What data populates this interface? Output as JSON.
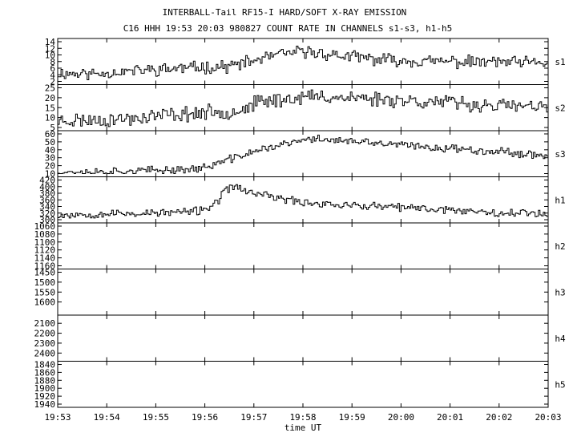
{
  "header": {
    "title": "INTERBALL-Tail RF15-I HARD/SOFT X-RAY EMISSION",
    "subtitle": "C16 HHH 19:53 20:03 980827  COUNT RATE IN CHANNELS s1-s3, h1-h5"
  },
  "chart_data": {
    "type": "line",
    "title": "INTERBALL-Tail RF15-I HARD/SOFT X-RAY EMISSION",
    "subtitle": "C16 HHH 19:53 20:03 980827  COUNT RATE IN CHANNELS s1-s3, h1-h5",
    "xlabel": "time UT",
    "x_ticks": [
      "19:53",
      "19:54",
      "19:55",
      "19:56",
      "19:57",
      "19:58",
      "19:59",
      "20:00",
      "20:01",
      "20:02",
      "20:03"
    ],
    "x_range_minutes": [
      0,
      10
    ],
    "panels": [
      {
        "name": "s1",
        "ticks": [
          "14",
          "12",
          "10",
          "8",
          "6",
          "4",
          "2"
        ],
        "range": [
          2,
          14
        ],
        "inverted": false,
        "anchors": [
          [
            0,
            4.5
          ],
          [
            0.7,
            4.3
          ],
          [
            1.3,
            5
          ],
          [
            2,
            5.6
          ],
          [
            2.5,
            6
          ],
          [
            3,
            6.3
          ],
          [
            3.5,
            6.6
          ],
          [
            4,
            8.2
          ],
          [
            4.3,
            9.5
          ],
          [
            4.7,
            10.5
          ],
          [
            5,
            11
          ],
          [
            5.3,
            10.6
          ],
          [
            5.7,
            9.8
          ],
          [
            6,
            9.4
          ],
          [
            6.5,
            8.6
          ],
          [
            7,
            8.3
          ],
          [
            7.5,
            8
          ],
          [
            8,
            8
          ],
          [
            8.5,
            7.8
          ],
          [
            9,
            7.9
          ],
          [
            9.5,
            7.5
          ],
          [
            10,
            7.6
          ]
        ],
        "noise": 1.5,
        "seed": 11
      },
      {
        "name": "s2",
        "ticks": [
          "25",
          "20",
          "15",
          "10",
          "5"
        ],
        "range": [
          5,
          25
        ],
        "inverted": false,
        "anchors": [
          [
            0,
            8.5
          ],
          [
            1,
            9
          ],
          [
            1.5,
            9.5
          ],
          [
            2,
            11
          ],
          [
            3,
            12.5
          ],
          [
            3.5,
            13
          ],
          [
            3.8,
            14.5
          ],
          [
            4,
            17
          ],
          [
            4.3,
            18.5
          ],
          [
            4.7,
            19.5
          ],
          [
            5,
            20.5
          ],
          [
            5.5,
            20.5
          ],
          [
            6,
            20
          ],
          [
            6.5,
            19.5
          ],
          [
            7,
            19
          ],
          [
            7.5,
            18
          ],
          [
            8,
            17.5
          ],
          [
            8.5,
            16.5
          ],
          [
            9,
            16
          ],
          [
            9.5,
            15.5
          ],
          [
            10,
            14.5
          ]
        ],
        "noise": 3,
        "seed": 23
      },
      {
        "name": "s3",
        "ticks": [
          "60",
          "50",
          "40",
          "30",
          "20",
          "10"
        ],
        "range": [
          10,
          60
        ],
        "inverted": false,
        "anchors": [
          [
            0,
            12
          ],
          [
            1,
            12.5
          ],
          [
            2,
            14
          ],
          [
            2.8,
            16
          ],
          [
            3,
            18
          ],
          [
            3.3,
            24
          ],
          [
            3.6,
            30
          ],
          [
            4,
            38
          ],
          [
            4.3,
            43
          ],
          [
            4.7,
            48
          ],
          [
            5,
            52
          ],
          [
            5.3,
            54
          ],
          [
            5.7,
            52
          ],
          [
            6,
            50
          ],
          [
            6.5,
            48
          ],
          [
            7,
            46
          ],
          [
            7.5,
            43
          ],
          [
            8,
            42
          ],
          [
            8.5,
            40
          ],
          [
            9,
            38
          ],
          [
            9.5,
            35
          ],
          [
            10,
            33
          ]
        ],
        "noise": 4,
        "seed": 37
      },
      {
        "name": "h1",
        "ticks": [
          "420",
          "400",
          "380",
          "360",
          "340",
          "320",
          "300"
        ],
        "range": [
          300,
          420
        ],
        "inverted": false,
        "anchors": [
          [
            0,
            315
          ],
          [
            1,
            318
          ],
          [
            2,
            320
          ],
          [
            2.8,
            325
          ],
          [
            3.2,
            345
          ],
          [
            3.35,
            380
          ],
          [
            3.6,
            405
          ],
          [
            3.8,
            385
          ],
          [
            4.2,
            375
          ],
          [
            4.6,
            362
          ],
          [
            5,
            352
          ],
          [
            5.5,
            348
          ],
          [
            6,
            342
          ],
          [
            6.5,
            340
          ],
          [
            7,
            336
          ],
          [
            7.5,
            333
          ],
          [
            8,
            330
          ],
          [
            8.5,
            326
          ],
          [
            9,
            322
          ],
          [
            9.5,
            320
          ],
          [
            10,
            320
          ]
        ],
        "noise": 10,
        "seed": 53
      },
      {
        "name": "h2",
        "ticks": [
          "1060",
          "1080",
          "1100",
          "1120",
          "1140",
          "1160"
        ],
        "range": [
          1060,
          1160
        ],
        "inverted": true,
        "anchors": [],
        "noise": 0,
        "seed": 0
      },
      {
        "name": "h3",
        "ticks": [
          "1450",
          "1500",
          "1550",
          "1600"
        ],
        "range": [
          1450,
          1650
        ],
        "inverted": true,
        "anchors": [],
        "noise": 0,
        "seed": 0
      },
      {
        "name": "h4",
        "ticks": [
          "2100",
          "2200",
          "2300",
          "2400"
        ],
        "range": [
          2050,
          2450
        ],
        "inverted": true,
        "anchors": [],
        "noise": 0,
        "seed": 0
      },
      {
        "name": "h5",
        "ticks": [
          "1840",
          "1860",
          "1880",
          "1900",
          "1920",
          "1940"
        ],
        "range": [
          1840,
          1940
        ],
        "inverted": true,
        "anchors": [],
        "noise": 0,
        "seed": 0
      }
    ]
  }
}
